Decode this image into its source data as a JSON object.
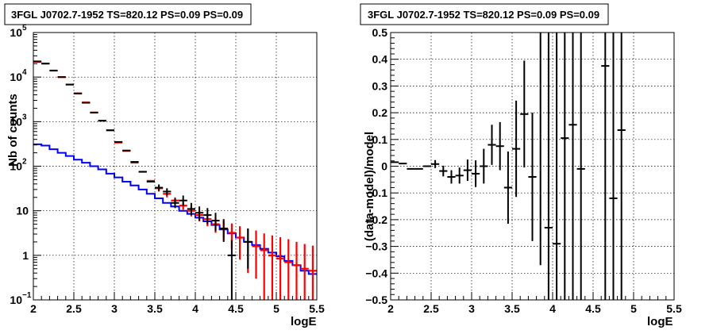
{
  "chart_data": [
    {
      "type": "line",
      "title": "3FGL J0702.7-1952 TS=820.12 PS=0.09 PS=0.09",
      "xlabel": "logE",
      "ylabel": "Nb of counts",
      "xlim": [
        2,
        5.5
      ],
      "ylim": [
        0.1,
        100000
      ],
      "yscale": "log",
      "grid": true,
      "xticks": [
        "2",
        "2.5",
        "3",
        "3.5",
        "4",
        "4.5",
        "5",
        "5.5"
      ],
      "yticks": [
        {
          "v": 0.1,
          "base": "10",
          "exp": "−1"
        },
        {
          "v": 1,
          "base": "1",
          "exp": ""
        },
        {
          "v": 10,
          "base": "10",
          "exp": ""
        },
        {
          "v": 100,
          "base": "10",
          "exp": "2"
        },
        {
          "v": 1000,
          "base": "10",
          "exp": "3"
        },
        {
          "v": 10000,
          "base": "10",
          "exp": "4"
        },
        {
          "v": 100000,
          "base": "10",
          "exp": "5"
        }
      ],
      "series": [
        {
          "color": "#0000ff",
          "style": "step",
          "x": [
            2.0,
            2.1,
            2.2,
            2.3,
            2.4,
            2.5,
            2.6,
            2.7,
            2.8,
            2.9,
            3.0,
            3.1,
            3.2,
            3.3,
            3.4,
            3.5,
            3.6,
            3.7,
            3.8,
            3.9,
            4.0,
            4.1,
            4.2,
            4.3,
            4.4,
            4.5,
            4.6,
            4.7,
            4.8,
            4.9,
            5.0,
            5.1,
            5.2,
            5.3,
            5.4
          ],
          "y": [
            310,
            290,
            240,
            200,
            170,
            140,
            120,
            100,
            85,
            68,
            56,
            45,
            37,
            30,
            24,
            19,
            15,
            12.5,
            10,
            8.5,
            7,
            5.8,
            4.8,
            3.8,
            3.1,
            2.5,
            2,
            1.7,
            1.4,
            1.15,
            0.95,
            0.75,
            0.6,
            0.45,
            0.38
          ]
        },
        {
          "color": "#ff0000",
          "style": "errorbar",
          "x": [
            2.05,
            2.15,
            2.25,
            2.35,
            2.45,
            2.55,
            2.65,
            2.75,
            2.85,
            2.95,
            3.05,
            3.15,
            3.25,
            3.35,
            3.45,
            3.55,
            3.65,
            3.75,
            3.85,
            3.95,
            4.05,
            4.15,
            4.25,
            4.35,
            4.45,
            4.55,
            4.65,
            4.75,
            4.85,
            4.95,
            5.05,
            5.15,
            5.25,
            5.35,
            5.45
          ],
          "y": [
            22000,
            20000,
            14000,
            10000,
            6800,
            4300,
            2700,
            1600,
            1050,
            640,
            340,
            220,
            120,
            75,
            47,
            32,
            24,
            17,
            13,
            10,
            8,
            6.5,
            5,
            4,
            3.2,
            2.5,
            2,
            1.6,
            1.3,
            1,
            0.85,
            0.7,
            0.6,
            0.5,
            0.45
          ],
          "err_lo": [
            0,
            0,
            0,
            0,
            0,
            0,
            0,
            0,
            0,
            0,
            0,
            0,
            0,
            0,
            0,
            5,
            4,
            3,
            2.5,
            2.5,
            2.2,
            2,
            1.8,
            1.8,
            1.8,
            1.7,
            1.6,
            1.3,
            1.2,
            0.95,
            0.8,
            0.65,
            0.55,
            0.47,
            0.43
          ],
          "err_hi": [
            0,
            0,
            0,
            0,
            0,
            0,
            0,
            0,
            0,
            0,
            0,
            0,
            0,
            0,
            0,
            5,
            4,
            3,
            2.5,
            2.5,
            2.2,
            2,
            2,
            2,
            2,
            2,
            2,
            2,
            1.8,
            1.8,
            1.7,
            1.6,
            1.4,
            1.3,
            1.2
          ]
        },
        {
          "color": "#000000",
          "style": "errorbar",
          "x": [
            2.05,
            2.15,
            2.25,
            2.35,
            2.45,
            2.55,
            2.65,
            2.75,
            2.85,
            2.95,
            3.05,
            3.15,
            3.25,
            3.35,
            3.45,
            3.55,
            3.65,
            3.75,
            3.85,
            3.95,
            4.05,
            4.15,
            4.25,
            4.35,
            4.45,
            4.65
          ],
          "y": [
            22500,
            20200,
            14000,
            10000,
            6800,
            4300,
            2650,
            1600,
            1050,
            640,
            350,
            225,
            125,
            75,
            45,
            33,
            27,
            15,
            17,
            11,
            9,
            8,
            6,
            4,
            1,
            2
          ],
          "err_lo": [
            0,
            0,
            0,
            0,
            0,
            0,
            0,
            0,
            0,
            0,
            0,
            0,
            0,
            0,
            0,
            5,
            5,
            3.5,
            4,
            3,
            3,
            3,
            2.5,
            2,
            0.9,
            1.5
          ],
          "err_hi": [
            0,
            0,
            0,
            0,
            0,
            0,
            0,
            0,
            0,
            0,
            0,
            0,
            0,
            0,
            0,
            6,
            5,
            4,
            5,
            4,
            3.5,
            3.5,
            3,
            2.5,
            1.2,
            2
          ]
        }
      ]
    },
    {
      "type": "scatter",
      "title": "3FGL J0702.7-1952 TS=820.12 PS=0.09 PS=0.09",
      "xlabel": "logE",
      "ylabel": "(data-model)/model",
      "xlim": [
        2,
        5.5
      ],
      "ylim": [
        -0.5,
        0.5
      ],
      "grid": true,
      "xticks": [
        "2",
        "2.5",
        "3",
        "3.5",
        "4",
        "4.5",
        "5",
        "5.5"
      ],
      "yticks": [
        "−0.5",
        "−0.4",
        "−0.3",
        "−0.2",
        "−0.1",
        "0",
        "0.1",
        "0.2",
        "0.3",
        "0.4",
        "0.5"
      ],
      "series": [
        {
          "color": "#000000",
          "style": "errorbar",
          "x": [
            2.05,
            2.15,
            2.25,
            2.35,
            2.45,
            2.55,
            2.65,
            2.75,
            2.85,
            2.95,
            3.05,
            3.15,
            3.25,
            3.35,
            3.45,
            3.55,
            3.65,
            3.75,
            3.85,
            3.95,
            4.05,
            4.15,
            4.25,
            4.35,
            4.65,
            4.75,
            4.85
          ],
          "y": [
            0.015,
            0.01,
            -0.01,
            -0.01,
            0.0,
            0.008,
            -0.018,
            -0.04,
            -0.035,
            -0.015,
            -0.028,
            0.0,
            0.08,
            0.075,
            -0.08,
            0.065,
            0.195,
            -0.04,
            0.53,
            -0.23,
            -0.29,
            0.105,
            0.155,
            -0.01,
            0.375,
            -0.12,
            0.135
          ],
          "err": [
            0.01,
            0.01,
            0.01,
            0.01,
            0.012,
            0.015,
            0.02,
            0.025,
            0.03,
            0.04,
            0.05,
            0.065,
            0.075,
            0.09,
            0.135,
            0.18,
            0.2,
            0.24,
            0.9,
            0.9,
            0.9,
            0.9,
            0.9,
            0.9,
            0.9,
            0.9,
            0.9
          ]
        }
      ]
    }
  ]
}
